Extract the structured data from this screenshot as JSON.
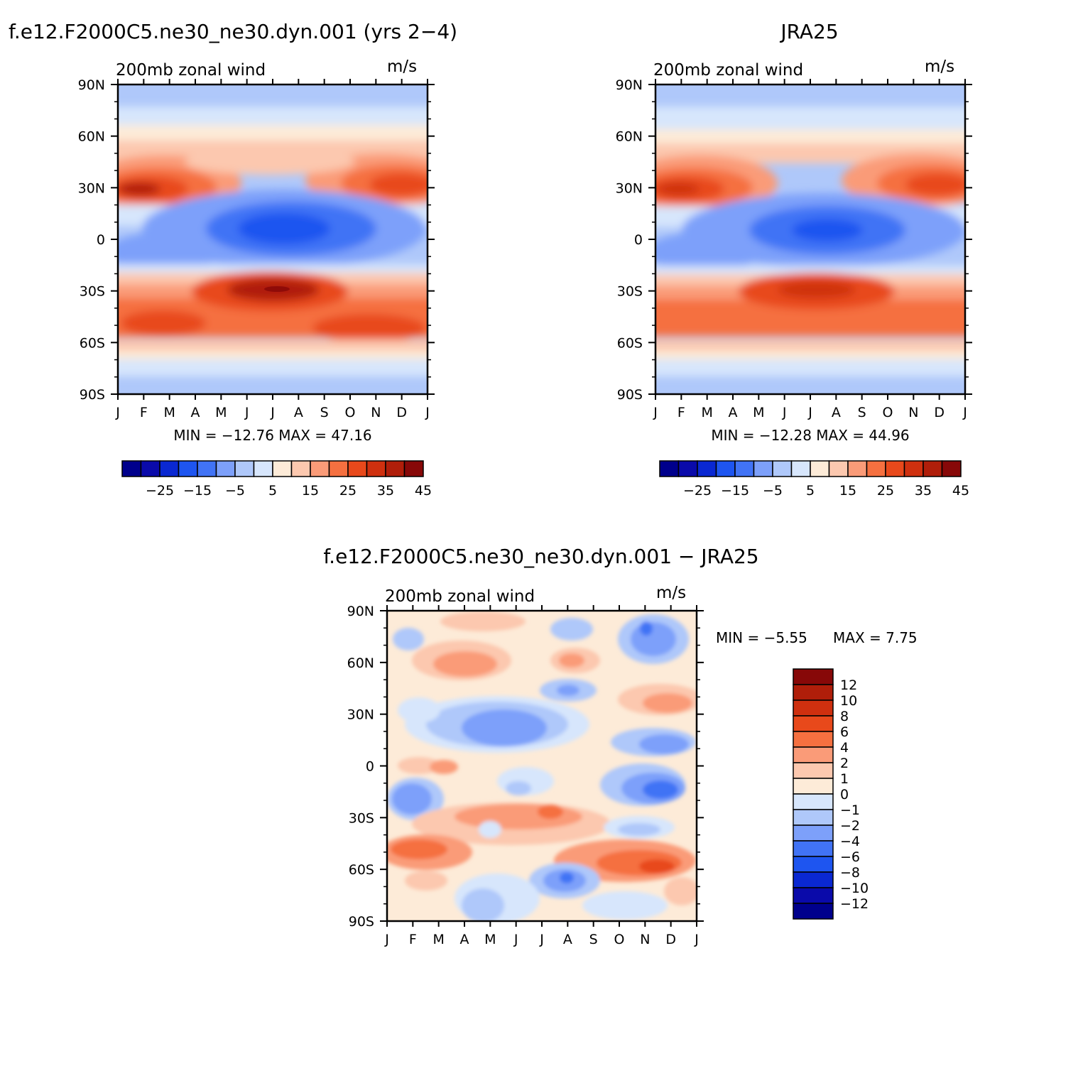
{
  "palette": {
    "full": [
      "#00008c",
      "#0a0aaa",
      "#0a28d2",
      "#1e55f0",
      "#4173f5",
      "#7da0fa",
      "#afc8fa",
      "#d7e6fc",
      "#fdebd8",
      "#fcc8af",
      "#fa9b78",
      "#f57040",
      "#e8491b",
      "#cf300f",
      "#b01e0a",
      "#870808"
    ],
    "diff_levels": [
      -12,
      -10,
      -8,
      -6,
      -4,
      -2,
      -1,
      0,
      1,
      2,
      4,
      6,
      8,
      10,
      12
    ],
    "diff_colors": [
      "#00008c",
      "#0a0aaa",
      "#0a28d2",
      "#1e55f0",
      "#4173f5",
      "#7da0fa",
      "#afc8fa",
      "#d7e6fc",
      "#fdebd8",
      "#fcc8af",
      "#fa9b78",
      "#f57040",
      "#e8491b",
      "#cf300f",
      "#b01e0a",
      "#870808"
    ],
    "full_levels": [
      -30,
      -25,
      -20,
      -15,
      -10,
      -5,
      0,
      5,
      10,
      15,
      20,
      25,
      30,
      35,
      40,
      45
    ]
  },
  "chart_data": [
    {
      "type": "heatmap",
      "title": "f.e12.F2000C5.ne30_ne30.dyn.001 (yrs 2−4)",
      "subtitle_left": "200mb zonal wind",
      "subtitle_right": "m/s",
      "stats": "MIN = −12.76 MAX =   47.16",
      "x_ticks": [
        "J",
        "F",
        "M",
        "A",
        "M",
        "J",
        "J",
        "A",
        "S",
        "O",
        "N",
        "D",
        "J"
      ],
      "y_ticks": [
        "90N",
        "60N",
        "30N",
        "0",
        "30S",
        "60S",
        "90S"
      ],
      "colorbar_labels": [
        "−25",
        "−15",
        "−5",
        "5",
        "15",
        "25",
        "35",
        "45"
      ],
      "y_range": [
        -90,
        90
      ],
      "min": -12.76,
      "max": 47.16
    },
    {
      "type": "heatmap",
      "title": "JRA25",
      "subtitle_left": "200mb zonal wind",
      "subtitle_right": "m/s",
      "stats": "MIN = −12.28 MAX =   44.96",
      "x_ticks": [
        "J",
        "F",
        "M",
        "A",
        "M",
        "J",
        "J",
        "A",
        "S",
        "O",
        "N",
        "D",
        "J"
      ],
      "y_ticks": [
        "90N",
        "60N",
        "30N",
        "0",
        "30S",
        "60S",
        "90S"
      ],
      "colorbar_labels": [
        "−25",
        "−15",
        "−5",
        "5",
        "15",
        "25",
        "35",
        "45"
      ],
      "y_range": [
        -90,
        90
      ],
      "min": -12.28,
      "max": 44.96
    },
    {
      "type": "heatmap",
      "title": "f.e12.F2000C5.ne30_ne30.dyn.001 − JRA25",
      "subtitle_left": "200mb zonal wind",
      "subtitle_right": "m/s",
      "stats_min": "MIN =   −5.55",
      "stats_max": "MAX =     7.75",
      "x_ticks": [
        "J",
        "F",
        "M",
        "A",
        "M",
        "J",
        "J",
        "A",
        "S",
        "O",
        "N",
        "D",
        "J"
      ],
      "y_ticks": [
        "90N",
        "60N",
        "30N",
        "0",
        "30S",
        "60S",
        "90S"
      ],
      "colorbar_labels": [
        "12",
        "10",
        "8",
        "6",
        "4",
        "2",
        "1",
        "0",
        "−1",
        "−2",
        "−4",
        "−6",
        "−8",
        "−10",
        "−12"
      ],
      "y_range": [
        -90,
        90
      ],
      "min": -5.55,
      "max": 7.75
    }
  ]
}
